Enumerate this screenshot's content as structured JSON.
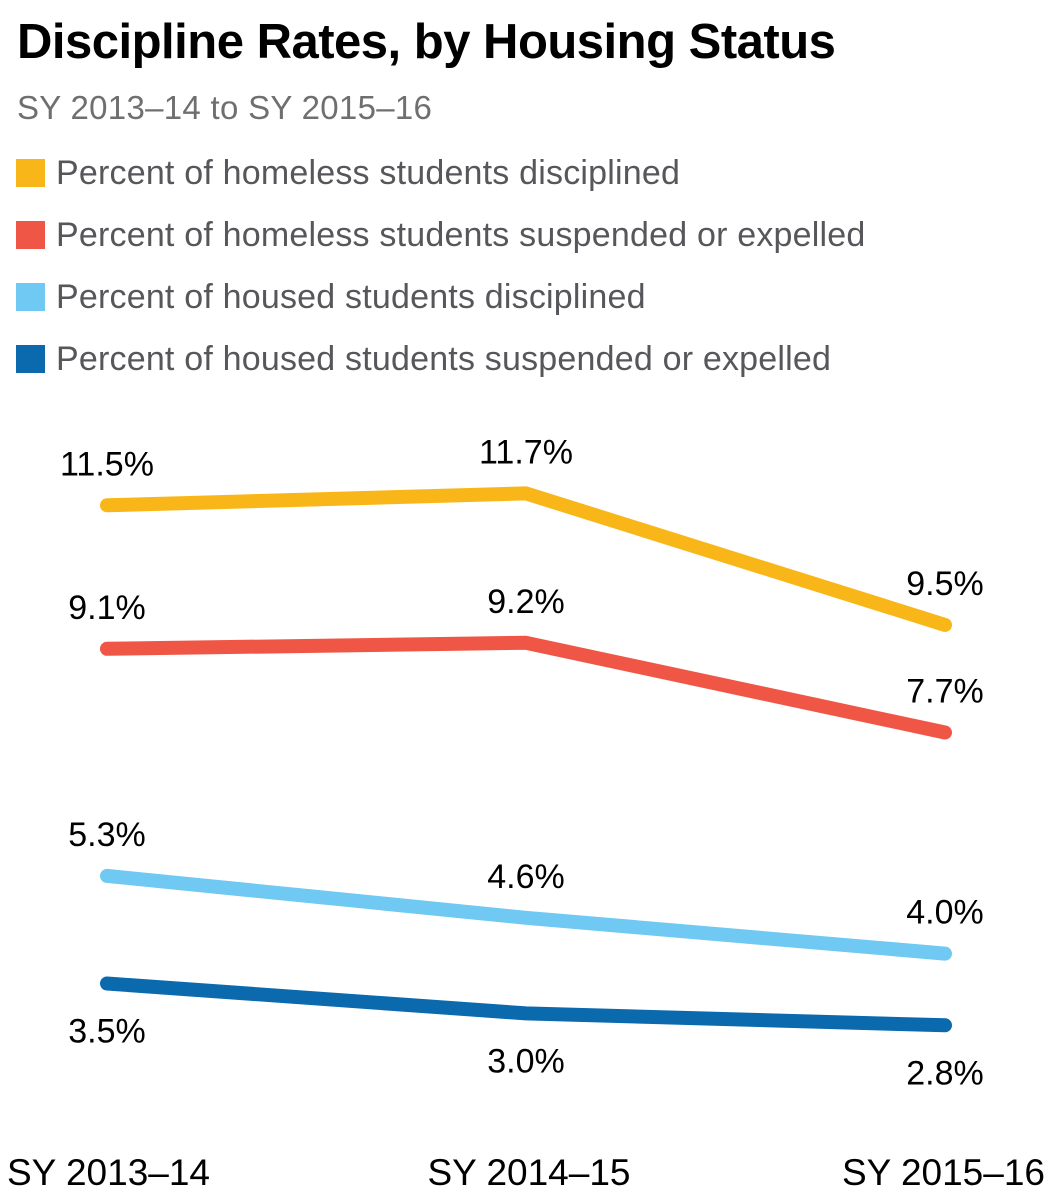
{
  "header": {
    "title": "Discipline Rates, by Housing Status",
    "subtitle": "SY 2013–14 to SY 2015–16"
  },
  "colors": {
    "background": "#ffffff",
    "title_text": "#000000",
    "subtitle_text": "#6f6f71",
    "legend_text": "#57575b",
    "data_label_text": "#000000",
    "axis_label_text": "#000000"
  },
  "chart_data": {
    "type": "line",
    "title": "Discipline Rates, by Housing Status",
    "subtitle": "SY 2013–14 to SY 2015–16",
    "x": [
      "SY 2013–14",
      "SY 2014–15",
      "SY 2015–16"
    ],
    "xlabel": "",
    "ylabel": "",
    "value_unit": "%",
    "grid": false,
    "y_axis_shown": false,
    "legend_position": "top-left",
    "series": [
      {
        "name": "Percent of homeless students disciplined",
        "color": "#F9B618",
        "values": [
          11.5,
          11.7,
          9.5
        ],
        "labels": [
          "11.5%",
          "11.7%",
          "9.5%"
        ],
        "label_position": "above"
      },
      {
        "name": "Percent of homeless students suspended or expelled",
        "color": "#EF5645",
        "values": [
          9.1,
          9.2,
          7.7
        ],
        "labels": [
          "9.1%",
          "9.2%",
          "7.7%"
        ],
        "label_position": "above"
      },
      {
        "name": "Percent of housed students disciplined",
        "color": "#6FC9F2",
        "values": [
          5.3,
          4.6,
          4.0
        ],
        "labels": [
          "5.3%",
          "4.6%",
          "4.0%"
        ],
        "label_position": "above"
      },
      {
        "name": "Percent of housed students suspended or expelled",
        "color": "#0B69AD",
        "values": [
          3.5,
          3.0,
          2.8
        ],
        "labels": [
          "3.5%",
          "3.0%",
          "2.8%"
        ],
        "label_position": "below"
      }
    ]
  }
}
